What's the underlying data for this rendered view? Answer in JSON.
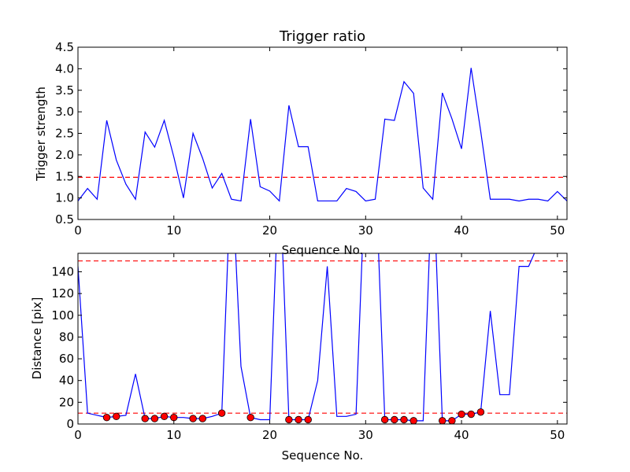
{
  "chart_data": [
    {
      "type": "line",
      "title": "Trigger ratio",
      "xlabel": "Sequence No.",
      "ylabel": "Trigger strength",
      "xlim": [
        0,
        51
      ],
      "ylim": [
        0.5,
        4.5
      ],
      "x_ticks": [
        "0",
        "10",
        "20",
        "30",
        "40",
        "50"
      ],
      "y_ticks": [
        "0.5",
        "1.0",
        "1.5",
        "2.0",
        "2.5",
        "3.0",
        "3.5",
        "4.0",
        "4.5"
      ],
      "grid": false,
      "line_color": "#0000ff",
      "threshold_color": "#ff0000",
      "thresholds": [
        1.48
      ],
      "series": [
        {
          "x": [
            0,
            1,
            2,
            3,
            4,
            5,
            6,
            7,
            8,
            9,
            10,
            11,
            12,
            13,
            14,
            15,
            16,
            17,
            18,
            19,
            20,
            21,
            22,
            23,
            24,
            25,
            26,
            27,
            28,
            29,
            30,
            31,
            32,
            33,
            34,
            35,
            36,
            37,
            38,
            39,
            40,
            41,
            42,
            43,
            44,
            45,
            46,
            47,
            48,
            49,
            50,
            51
          ],
          "values": [
            0.93,
            1.22,
            0.97,
            2.8,
            1.88,
            1.32,
            0.97,
            2.53,
            2.18,
            2.8,
            1.95,
            1.0,
            2.5,
            1.92,
            1.23,
            1.57,
            0.97,
            0.93,
            2.83,
            1.26,
            1.16,
            0.93,
            3.15,
            2.19,
            2.19,
            0.93,
            0.93,
            0.93,
            1.22,
            1.15,
            0.93,
            0.97,
            2.83,
            2.8,
            3.7,
            3.43,
            1.23,
            0.97,
            3.44,
            2.84,
            2.14,
            4.02,
            2.55,
            0.97,
            0.97,
            0.97,
            0.93,
            0.97,
            0.97,
            0.93,
            1.15,
            0.93
          ]
        }
      ]
    },
    {
      "type": "line",
      "title": "",
      "xlabel": "Sequence No.",
      "ylabel": "Distance [pix]",
      "xlim": [
        0,
        51
      ],
      "ylim": [
        0,
        157
      ],
      "x_ticks": [
        "0",
        "10",
        "20",
        "30",
        "40",
        "50"
      ],
      "y_ticks": [
        "0",
        "20",
        "40",
        "60",
        "80",
        "100",
        "120",
        "140"
      ],
      "grid": false,
      "line_color": "#0000ff",
      "marker_color": "#ff0000",
      "threshold_color": "#ff0000",
      "thresholds": [
        10,
        150
      ],
      "series": [
        {
          "x": [
            0,
            1,
            2,
            3,
            4,
            5,
            6,
            7,
            8,
            9,
            10,
            11,
            12,
            13,
            14,
            15,
            16,
            17,
            18,
            19,
            20,
            21,
            22,
            23,
            24,
            25,
            26,
            27,
            28,
            29,
            30,
            31,
            32,
            33,
            34,
            35,
            36,
            37,
            38,
            39,
            40,
            41,
            42,
            43,
            44,
            45,
            46,
            47,
            48
          ],
          "values": [
            145,
            10,
            8,
            6,
            7,
            8,
            46,
            5,
            5,
            7,
            6,
            6,
            5,
            5,
            7,
            10,
            240,
            53,
            6,
            4,
            4,
            240,
            4,
            4,
            4,
            40,
            145,
            7,
            7,
            9,
            240,
            240,
            4,
            4,
            4,
            3,
            3,
            240,
            3,
            3,
            9,
            9,
            11,
            104,
            27,
            27,
            145,
            145,
            165
          ]
        }
      ],
      "marker_points": [
        {
          "x": 3,
          "y": 6
        },
        {
          "x": 4,
          "y": 7
        },
        {
          "x": 7,
          "y": 5
        },
        {
          "x": 8,
          "y": 5
        },
        {
          "x": 9,
          "y": 7
        },
        {
          "x": 10,
          "y": 6
        },
        {
          "x": 12,
          "y": 5
        },
        {
          "x": 13,
          "y": 5
        },
        {
          "x": 15,
          "y": 10
        },
        {
          "x": 18,
          "y": 6
        },
        {
          "x": 22,
          "y": 4
        },
        {
          "x": 23,
          "y": 4
        },
        {
          "x": 24,
          "y": 4
        },
        {
          "x": 32,
          "y": 4
        },
        {
          "x": 33,
          "y": 4
        },
        {
          "x": 34,
          "y": 4
        },
        {
          "x": 35,
          "y": 3
        },
        {
          "x": 38,
          "y": 3
        },
        {
          "x": 39,
          "y": 3
        },
        {
          "x": 40,
          "y": 9
        },
        {
          "x": 41,
          "y": 9
        },
        {
          "x": 42,
          "y": 11
        }
      ]
    }
  ]
}
